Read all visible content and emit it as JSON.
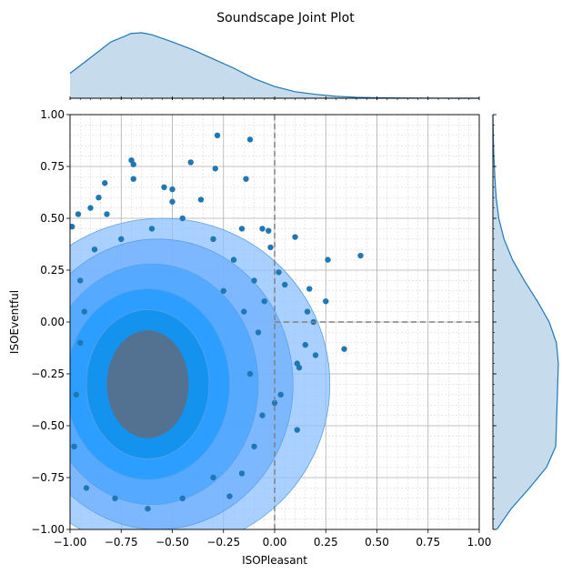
{
  "chart_data": {
    "type": "scatter",
    "title": "Soundscape Joint Plot",
    "xlabel": "ISOPleasant",
    "ylabel": "ISOEventful",
    "xlim": [
      -1.0,
      1.0
    ],
    "ylim": [
      -1.0,
      1.0
    ],
    "xticks": [
      "−1.00",
      "−0.75",
      "−0.50",
      "−0.25",
      "0.00",
      "0.25",
      "0.50",
      "0.75",
      "1.00"
    ],
    "yticks": [
      "−1.00",
      "−0.75",
      "−0.50",
      "−0.25",
      "0.00",
      "0.25",
      "0.50",
      "0.75",
      "1.00"
    ],
    "grid": true,
    "reference_lines": {
      "x": 0.0,
      "y": 0.0
    },
    "colors": {
      "points": "#1f77b4",
      "kde_fill": "#1e90ff",
      "kde_core": "#5a6e86",
      "marginal_fill": "#c6dbec",
      "marginal_line": "#1f77b4",
      "refline": "#808080"
    },
    "kde_levels": [
      {
        "cx": -0.55,
        "cy": -0.3,
        "rx": 0.82,
        "ry": 0.8
      },
      {
        "cx": -0.57,
        "cy": -0.3,
        "rx": 0.66,
        "ry": 0.7
      },
      {
        "cx": -0.6,
        "cy": -0.3,
        "rx": 0.52,
        "ry": 0.58
      },
      {
        "cx": -0.62,
        "cy": -0.3,
        "rx": 0.4,
        "ry": 0.46
      },
      {
        "cx": -0.62,
        "cy": -0.3,
        "rx": 0.3,
        "ry": 0.36
      }
    ],
    "points": [
      [
        -0.7,
        0.78
      ],
      [
        -0.69,
        0.76
      ],
      [
        -0.28,
        0.9
      ],
      [
        -0.12,
        0.88
      ],
      [
        -0.41,
        0.77
      ],
      [
        -0.29,
        0.74
      ],
      [
        -0.69,
        0.69
      ],
      [
        -0.83,
        0.67
      ],
      [
        -0.14,
        0.69
      ],
      [
        -0.86,
        0.6
      ],
      [
        -0.54,
        0.65
      ],
      [
        -0.5,
        0.64
      ],
      [
        -0.36,
        0.59
      ],
      [
        -0.5,
        0.58
      ],
      [
        -0.9,
        0.55
      ],
      [
        -0.96,
        0.52
      ],
      [
        -0.82,
        0.52
      ],
      [
        -0.99,
        0.46
      ],
      [
        -0.16,
        0.45
      ],
      [
        -0.06,
        0.45
      ],
      [
        -0.03,
        0.44
      ],
      [
        0.1,
        0.41
      ],
      [
        -0.02,
        0.36
      ],
      [
        0.42,
        0.32
      ],
      [
        0.26,
        0.3
      ],
      [
        0.02,
        0.24
      ],
      [
        0.05,
        0.18
      ],
      [
        0.17,
        0.16
      ],
      [
        0.16,
        0.05
      ],
      [
        0.25,
        0.1
      ],
      [
        0.19,
        0.0
      ],
      [
        0.15,
        -0.11
      ],
      [
        0.34,
        -0.13
      ],
      [
        0.2,
        -0.16
      ],
      [
        0.11,
        -0.2
      ],
      [
        0.12,
        -0.22
      ],
      [
        0.03,
        -0.35
      ],
      [
        0.0,
        -0.39
      ],
      [
        0.11,
        -0.52
      ],
      [
        -0.16,
        -0.73
      ],
      [
        -0.22,
        -0.84
      ],
      [
        -0.1,
        0.2
      ],
      [
        -0.2,
        0.3
      ],
      [
        -0.3,
        0.4
      ],
      [
        -0.45,
        0.5
      ],
      [
        -0.6,
        0.45
      ],
      [
        -0.75,
        0.4
      ],
      [
        -0.88,
        0.35
      ],
      [
        -0.95,
        0.2
      ],
      [
        -0.05,
        0.1
      ],
      [
        -0.15,
        0.05
      ],
      [
        -0.08,
        -0.05
      ],
      [
        -0.12,
        -0.25
      ],
      [
        -0.06,
        -0.45
      ],
      [
        -0.1,
        -0.6
      ],
      [
        -0.3,
        -0.75
      ],
      [
        -0.45,
        -0.85
      ],
      [
        -0.62,
        -0.9
      ],
      [
        -0.78,
        -0.85
      ],
      [
        -0.92,
        -0.8
      ],
      [
        -0.98,
        -0.6
      ],
      [
        -0.97,
        -0.35
      ],
      [
        -0.95,
        -0.1
      ],
      [
        -0.93,
        0.05
      ],
      [
        -0.25,
        0.15
      ]
    ],
    "marginal_x": {
      "x": [
        -1.0,
        -0.9,
        -0.8,
        -0.7,
        -0.65,
        -0.6,
        -0.5,
        -0.4,
        -0.3,
        -0.2,
        -0.1,
        0.0,
        0.1,
        0.2,
        0.3,
        0.4,
        0.5,
        0.6,
        0.7,
        0.8,
        0.9,
        1.0
      ],
      "density": [
        0.38,
        0.62,
        0.86,
        0.99,
        1.0,
        0.97,
        0.86,
        0.74,
        0.6,
        0.46,
        0.3,
        0.18,
        0.1,
        0.06,
        0.03,
        0.015,
        0.008,
        0.004,
        0.002,
        0.001,
        0.0,
        0.0
      ]
    },
    "marginal_y": {
      "y": [
        -1.0,
        -0.9,
        -0.8,
        -0.7,
        -0.6,
        -0.5,
        -0.4,
        -0.3,
        -0.2,
        -0.1,
        0.0,
        0.1,
        0.2,
        0.3,
        0.4,
        0.5,
        0.6,
        0.7,
        0.8,
        0.9,
        1.0
      ],
      "density": [
        0.06,
        0.28,
        0.56,
        0.82,
        0.96,
        0.97,
        0.98,
        0.99,
        1.0,
        0.97,
        0.86,
        0.68,
        0.48,
        0.3,
        0.17,
        0.09,
        0.05,
        0.03,
        0.015,
        0.005,
        0.0
      ]
    }
  }
}
